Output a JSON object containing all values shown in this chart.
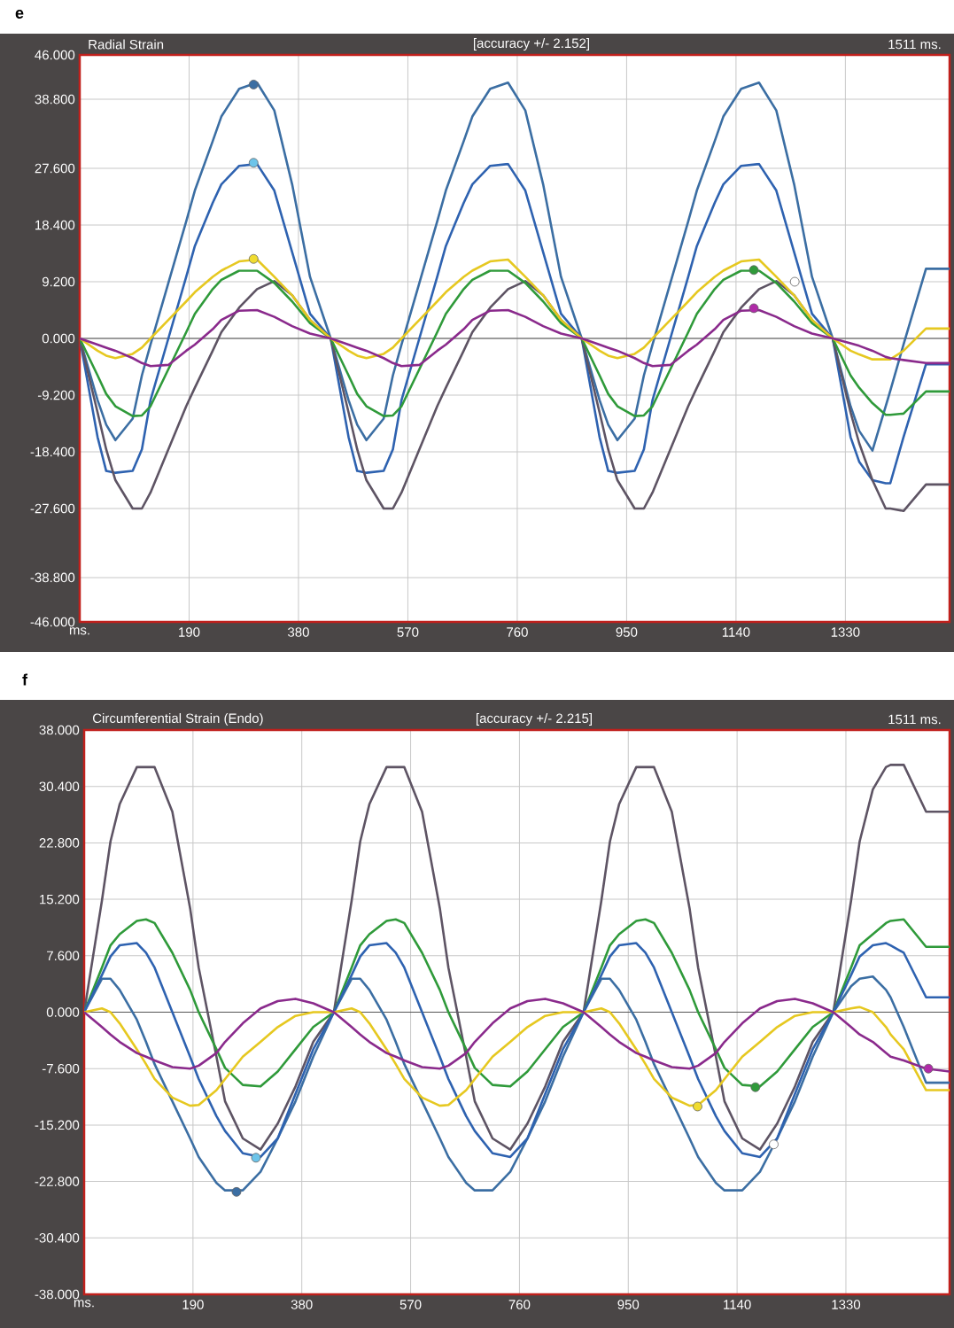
{
  "chart_data": [
    {
      "type": "line",
      "title": "Radial Strain",
      "subtitle": "[accuracy +/- 2.152]",
      "annotations": [
        "e",
        "1511 ms."
      ],
      "x": [
        0,
        31,
        46,
        62,
        92,
        108,
        123,
        154,
        185,
        200,
        231,
        246,
        277,
        308,
        338,
        369,
        400,
        436,
        467,
        482,
        498,
        528,
        544,
        559,
        590,
        621,
        636,
        667,
        682,
        713,
        744,
        774,
        805,
        836,
        872,
        903,
        918,
        934,
        964,
        980,
        995,
        1026,
        1057,
        1072,
        1103,
        1118,
        1149,
        1180,
        1210,
        1241,
        1272,
        1308,
        1339,
        1354,
        1377,
        1400,
        1408,
        1431,
        1470,
        1511
      ],
      "series": [
        {
          "color": "#3b6ea3",
          "values": [
            0,
            -10,
            -14,
            -16.5,
            -13,
            -6,
            -1,
            9,
            19,
            24,
            32,
            36,
            40.5,
            41.5,
            37,
            25,
            10,
            0,
            -10,
            -14,
            -16.5,
            -13,
            -6,
            -1,
            9,
            19,
            24,
            32,
            36,
            40.5,
            41.5,
            37,
            25,
            10,
            0,
            -10,
            -14,
            -16.5,
            -13,
            -6,
            -1,
            9,
            19,
            24,
            32,
            36,
            40.5,
            41.5,
            37,
            25,
            10,
            0,
            -11,
            -15,
            -18.2,
            -11,
            -8.5,
            -1,
            11.3,
            11.3
          ]
        },
        {
          "color": "#2e62b0",
          "values": [
            0,
            -16,
            -21.5,
            -21.8,
            -21.5,
            -18,
            -10,
            0,
            10,
            15,
            22,
            25,
            28,
            28.3,
            24,
            14,
            4,
            0,
            -16,
            -21.5,
            -21.8,
            -21.5,
            -18,
            -10,
            0,
            10,
            15,
            22,
            25,
            28,
            28.3,
            24,
            14,
            4,
            0,
            -16,
            -21.5,
            -21.8,
            -21.5,
            -18,
            -10,
            0,
            10,
            15,
            22,
            25,
            28,
            28.3,
            24,
            14,
            4,
            0,
            -16,
            -20,
            -23,
            -23.5,
            -23.5,
            -16,
            -4.2,
            -4.2
          ]
        },
        {
          "color": "#5e5464",
          "values": [
            0,
            -12,
            -18,
            -23,
            -27.6,
            -27.6,
            -25,
            -18,
            -11,
            -8,
            -2,
            1,
            5,
            8,
            9.3,
            7,
            3,
            0,
            -12,
            -18,
            -23,
            -27.6,
            -27.6,
            -25,
            -18,
            -11,
            -8,
            -2,
            1,
            5,
            8,
            9.3,
            7,
            3,
            0,
            -12,
            -18,
            -23,
            -27.6,
            -27.6,
            -25,
            -18,
            -11,
            -8,
            -2,
            1,
            5,
            8,
            9.3,
            7,
            3,
            0,
            -12,
            -17,
            -23,
            -27.6,
            -27.6,
            -28,
            -23.7,
            -23.7
          ]
        },
        {
          "color": "#2f9a3a",
          "values": [
            0,
            -6,
            -9,
            -11,
            -12.6,
            -12.5,
            -11,
            -5,
            1,
            4,
            8,
            9.5,
            11,
            11,
            9,
            6,
            2.5,
            0,
            -6,
            -9,
            -11,
            -12.6,
            -12.5,
            -11,
            -5,
            1,
            4,
            8,
            9.5,
            11,
            11,
            9,
            6,
            2.5,
            0,
            -6,
            -9,
            -11,
            -12.6,
            -12.5,
            -11,
            -5,
            1,
            4,
            8,
            9.5,
            11,
            11,
            9,
            6,
            2.5,
            0,
            -6,
            -8,
            -10.5,
            -12.4,
            -12.4,
            -12.2,
            -8.6,
            -8.6
          ]
        },
        {
          "color": "#e6c820",
          "values": [
            0,
            -2,
            -2.8,
            -3.2,
            -2.5,
            -1.5,
            0,
            3,
            6,
            7.5,
            10,
            11,
            12.5,
            12.8,
            10,
            7,
            3,
            0,
            -2,
            -2.8,
            -3.2,
            -2.5,
            -1.5,
            0,
            3,
            6,
            7.5,
            10,
            11,
            12.5,
            12.8,
            10,
            7,
            3,
            0,
            -2,
            -2.8,
            -3.2,
            -2.5,
            -1.5,
            0,
            3,
            6,
            7.5,
            10,
            11,
            12.5,
            12.8,
            10,
            7,
            3,
            0,
            -2,
            -2.6,
            -3.4,
            -3.4,
            -3.4,
            -2,
            1.6,
            1.6
          ]
        },
        {
          "color": "#8a2a8c",
          "values": [
            0,
            -1,
            -1.5,
            -2,
            -3.2,
            -4,
            -4.5,
            -4.3,
            -2,
            -1,
            1.5,
            3,
            4.5,
            4.6,
            3.5,
            2,
            0.8,
            0,
            -1,
            -1.5,
            -2,
            -3.2,
            -4,
            -4.5,
            -4.3,
            -2,
            -1,
            1.5,
            3,
            4.5,
            4.6,
            3.5,
            2,
            0.8,
            0,
            -1,
            -1.5,
            -2,
            -3.2,
            -4,
            -4.5,
            -4.3,
            -2,
            -1,
            1.5,
            3,
            4.5,
            4.6,
            3.5,
            2,
            0.8,
            0,
            -0.8,
            -1.2,
            -2,
            -3,
            -3.2,
            -3.5,
            -4,
            -4
          ]
        },
        {
          "type": "scatter",
          "marker": "circle",
          "x": [
            302,
            302,
            302,
            1171,
            1171,
            1242
          ],
          "values": [
            41.2,
            28.5,
            12.9,
            11.1,
            4.9,
            9.2
          ],
          "colors": [
            "#3b6ea3",
            "#6cc4ea",
            "#f0dc30",
            "#2f9a3a",
            "#b02aa8",
            "#ffffff"
          ]
        }
      ],
      "xlim": [
        0,
        1511
      ],
      "ylim": [
        -46,
        46
      ],
      "xticks": [
        {
          "value": 0,
          "label": "ms."
        },
        190,
        380,
        570,
        760,
        950,
        1140,
        1330
      ],
      "yticks": [
        {
          "value": -46,
          "label": "-46.000"
        },
        {
          "value": -38.8,
          "label": "-38.800"
        },
        {
          "value": -27.6,
          "label": "-27.600"
        },
        {
          "value": -18.4,
          "label": "-18.400"
        },
        {
          "value": -9.2,
          "label": "-9.200"
        },
        {
          "value": 0,
          "label": "0.000"
        },
        {
          "value": 9.2,
          "label": "9.200"
        },
        {
          "value": 18.4,
          "label": "18.400"
        },
        {
          "value": 27.6,
          "label": "27.600"
        },
        {
          "value": 38.8,
          "label": "38.800"
        },
        {
          "value": 46,
          "label": "46.000"
        }
      ],
      "ref_lines": [
        {
          "axis": "y",
          "value": 0,
          "color": "#555555"
        }
      ],
      "grid": true,
      "marker": "none"
    },
    {
      "type": "line",
      "title": "Circumferential Strain (Endo)",
      "subtitle": "[accuracy +/- 2.215]",
      "annotations": [
        "f",
        "1511 ms."
      ],
      "x": [
        0,
        31,
        46,
        62,
        92,
        108,
        123,
        154,
        185,
        200,
        231,
        246,
        277,
        308,
        338,
        369,
        400,
        436,
        467,
        482,
        498,
        528,
        544,
        559,
        590,
        621,
        636,
        667,
        682,
        713,
        744,
        774,
        805,
        836,
        872,
        903,
        918,
        934,
        964,
        980,
        995,
        1026,
        1057,
        1072,
        1103,
        1118,
        1149,
        1180,
        1210,
        1241,
        1272,
        1308,
        1339,
        1354,
        1377,
        1400,
        1408,
        1431,
        1470,
        1511
      ],
      "series": [
        {
          "color": "#5e5464",
          "values": [
            0,
            15,
            23,
            28,
            33,
            33,
            33,
            27,
            14,
            6,
            -6,
            -12,
            -17,
            -18.5,
            -15,
            -10,
            -4,
            0,
            15,
            23,
            28,
            33,
            33,
            33,
            27,
            14,
            6,
            -6,
            -12,
            -17,
            -18.5,
            -15,
            -10,
            -4,
            0,
            15,
            23,
            28,
            33,
            33,
            33,
            27,
            14,
            6,
            -6,
            -12,
            -17,
            -18.5,
            -15,
            -10,
            -4,
            0,
            15,
            23,
            30,
            33,
            33.3,
            33.3,
            27,
            27
          ]
        },
        {
          "color": "#2f9a3a",
          "values": [
            0,
            6,
            9,
            10.5,
            12.3,
            12.5,
            12,
            8,
            3,
            0,
            -5,
            -7.5,
            -9.8,
            -10,
            -8,
            -5,
            -2,
            0,
            6,
            9,
            10.5,
            12.3,
            12.5,
            12,
            8,
            3,
            0,
            -5,
            -7.5,
            -9.8,
            -10,
            -8,
            -5,
            -2,
            0,
            6,
            9,
            10.5,
            12.3,
            12.5,
            12,
            8,
            3,
            0,
            -5,
            -7.5,
            -9.8,
            -10,
            -8,
            -5,
            -2,
            0,
            6,
            9,
            10.5,
            12,
            12.3,
            12.5,
            8.8,
            8.8
          ]
        },
        {
          "color": "#3b6ea3",
          "values": [
            0,
            4.5,
            4.5,
            3,
            -1,
            -4,
            -7,
            -12,
            -17,
            -19.5,
            -23,
            -24,
            -24,
            -21.5,
            -17,
            -12,
            -6,
            0,
            4.5,
            4.5,
            3,
            -1,
            -4,
            -7,
            -12,
            -17,
            -19.5,
            -23,
            -24,
            -24,
            -21.5,
            -17,
            -12,
            -6,
            0,
            4.5,
            4.5,
            3,
            -1,
            -4,
            -7,
            -12,
            -17,
            -19.5,
            -23,
            -24,
            -24,
            -21.5,
            -17,
            -12,
            -6,
            0,
            3.5,
            4.5,
            4.8,
            3,
            2,
            -2,
            -9.5,
            -9.5
          ]
        },
        {
          "color": "#2e62b0",
          "values": [
            0,
            5,
            7.5,
            9,
            9.3,
            8,
            6,
            0,
            -6,
            -9,
            -14,
            -16,
            -19,
            -19.5,
            -17,
            -11,
            -5,
            0,
            5,
            7.5,
            9,
            9.3,
            8,
            6,
            0,
            -6,
            -9,
            -14,
            -16,
            -19,
            -19.5,
            -17,
            -11,
            -5,
            0,
            5,
            7.5,
            9,
            9.3,
            8,
            6,
            0,
            -6,
            -9,
            -14,
            -16,
            -19,
            -19.5,
            -17,
            -11,
            -5,
            0,
            5,
            7.5,
            9,
            9.3,
            9,
            8,
            2,
            2
          ]
        },
        {
          "color": "#e6c820",
          "values": [
            0,
            0.5,
            0,
            -1.5,
            -5,
            -7,
            -9,
            -11.5,
            -12.6,
            -12.5,
            -10.5,
            -9,
            -6,
            -4,
            -2,
            -0.5,
            0,
            0,
            0.5,
            0,
            -1.5,
            -5,
            -7,
            -9,
            -11.5,
            -12.6,
            -12.5,
            -10.5,
            -9,
            -6,
            -4,
            -2,
            -0.5,
            0,
            0,
            0.5,
            0,
            -1.5,
            -5,
            -7,
            -9,
            -11.5,
            -12.6,
            -12.5,
            -10.5,
            -9,
            -6,
            -4,
            -2,
            -0.5,
            0,
            0,
            0.5,
            0.7,
            0,
            -2,
            -3,
            -5,
            -10.5,
            -10.5
          ]
        },
        {
          "color": "#8a2a8c",
          "values": [
            0,
            -2,
            -3,
            -4,
            -5.5,
            -6,
            -6.5,
            -7.4,
            -7.6,
            -7.2,
            -5.5,
            -4,
            -1.5,
            0.5,
            1.5,
            1.8,
            1.2,
            0,
            -2,
            -3,
            -4,
            -5.5,
            -6,
            -6.5,
            -7.4,
            -7.6,
            -7.2,
            -5.5,
            -4,
            -1.5,
            0.5,
            1.5,
            1.8,
            1.2,
            0,
            -2,
            -3,
            -4,
            -5.5,
            -6,
            -6.5,
            -7.4,
            -7.6,
            -7.2,
            -5.5,
            -4,
            -1.5,
            0.5,
            1.5,
            1.8,
            1.2,
            0,
            -2,
            -3,
            -4,
            -5.5,
            -6,
            -6.5,
            -7.6,
            -8
          ]
        },
        {
          "type": "scatter",
          "marker": "circle",
          "x": [
            300,
            266,
            1071,
            1172,
            1204,
            1474
          ],
          "values": [
            -19.6,
            -24.2,
            -12.7,
            -10.1,
            -17.8,
            -7.6
          ],
          "colors": [
            "#6cc4ea",
            "#3b6ea3",
            "#f0dc30",
            "#2f9a3a",
            "#ffffff",
            "#b02aa8"
          ]
        }
      ],
      "xlim": [
        0,
        1511
      ],
      "ylim": [
        -38,
        38
      ],
      "xticks": [
        {
          "value": 0,
          "label": "ms."
        },
        190,
        380,
        570,
        760,
        950,
        1140,
        1330
      ],
      "yticks": [
        {
          "value": -38,
          "label": "-38.000"
        },
        {
          "value": -30.4,
          "label": "-30.400"
        },
        {
          "value": -22.8,
          "label": "-22.800"
        },
        {
          "value": -15.2,
          "label": "-15.200"
        },
        {
          "value": -7.6,
          "label": "-7.600"
        },
        {
          "value": 0,
          "label": "0.000"
        },
        {
          "value": 7.6,
          "label": "7.600"
        },
        {
          "value": 15.2,
          "label": "15.200"
        },
        {
          "value": 22.8,
          "label": "22.800"
        },
        {
          "value": 30.4,
          "label": "30.400"
        },
        {
          "value": 38,
          "label": "38.000"
        }
      ],
      "ref_lines": [
        {
          "axis": "y",
          "value": 0,
          "color": "#555555"
        }
      ],
      "grid": true,
      "marker": "none"
    }
  ]
}
